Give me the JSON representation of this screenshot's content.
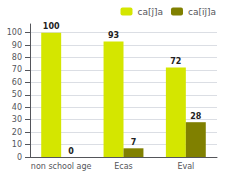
{
  "chart_data": {
    "type": "bar",
    "categories": [
      "non school age",
      "Ecas",
      "Eval"
    ],
    "series": [
      {
        "name": "ca[ĵ]a",
        "color": "#d4e600",
        "values": [
          100,
          93,
          72
        ]
      },
      {
        "name": "ca[ĭĵ]a",
        "color": "#808000",
        "values": [
          0,
          7,
          28
        ]
      }
    ],
    "ylim": [
      0,
      107
    ],
    "yticks": [
      0,
      10,
      20,
      30,
      40,
      50,
      60,
      70,
      80,
      90,
      100
    ],
    "grid": true,
    "legend": "upper right",
    "data_labels": true
  }
}
